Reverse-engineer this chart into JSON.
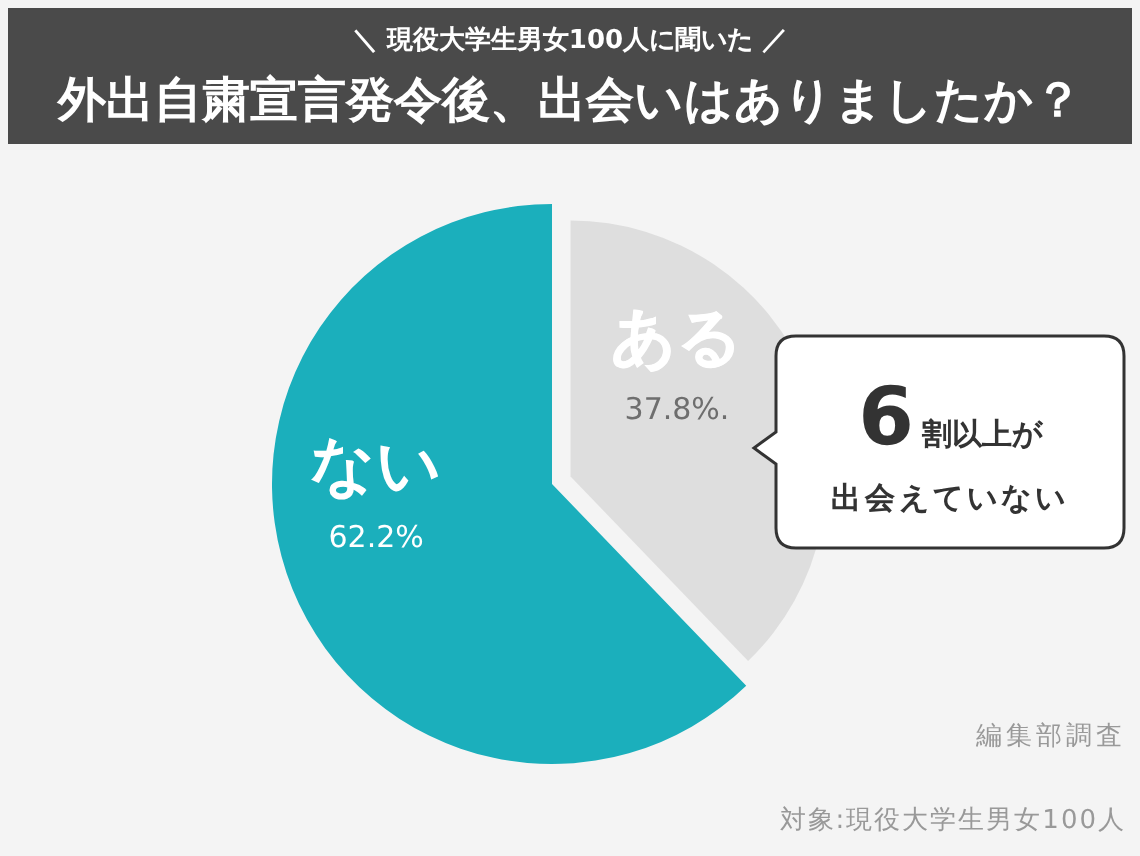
{
  "chart_data": {
    "type": "pie",
    "subtitle": "＼ 現役大学生男女100人に聞いた ／",
    "title": "外出自粛宣言発令後、出会いはありましたか？",
    "categories": [
      "ある",
      "ない"
    ],
    "values": [
      37.8,
      62.2
    ],
    "colors": [
      "#dedede",
      "#1bafbc"
    ],
    "value_labels": [
      "37.8%.",
      "62.2%"
    ],
    "annotations": [
      "6割以上が",
      "出会えていない",
      "編集部調査",
      "対象:現役大学生男女100人"
    ]
  }
}
